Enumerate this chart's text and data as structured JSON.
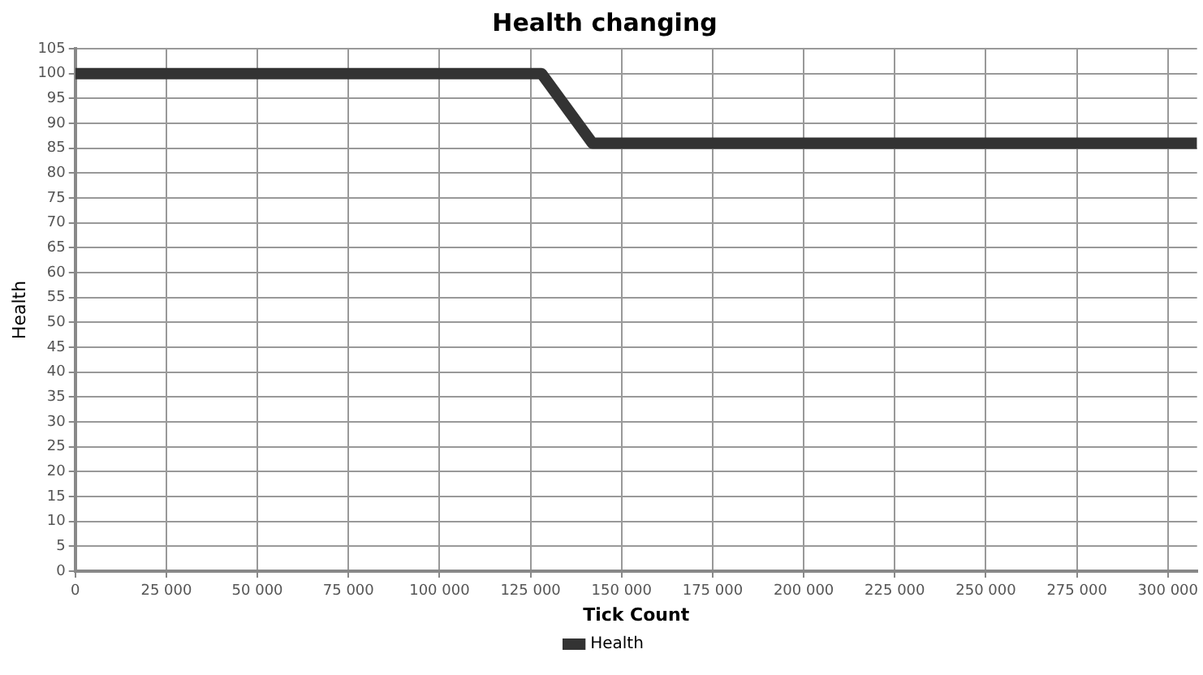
{
  "chart_data": {
    "type": "line",
    "title": "Health changing",
    "xlabel": "Tick Count",
    "ylabel": "Health",
    "series": [
      {
        "name": "Health",
        "color": "#333333",
        "x": [
          0,
          128000,
          142000,
          308000
        ],
        "values": [
          100,
          100,
          86,
          86
        ]
      }
    ],
    "xlim": [
      0,
      308000
    ],
    "xticks": [
      0,
      {
        "value": 25000,
        "label": "25 000"
      },
      {
        "value": 50000,
        "label": "50 000"
      },
      {
        "value": 75000,
        "label": "75 000"
      },
      {
        "value": 100000,
        "label": "100 000"
      },
      {
        "value": 125000,
        "label": "125 000"
      },
      {
        "value": 150000,
        "label": "150 000"
      },
      {
        "value": 175000,
        "label": "175 000"
      },
      {
        "value": 200000,
        "label": "200 000"
      },
      {
        "value": 225000,
        "label": "225 000"
      },
      {
        "value": 250000,
        "label": "250 000"
      },
      {
        "value": 275000,
        "label": "275 000"
      },
      {
        "value": 300000,
        "label": "300 000"
      }
    ],
    "ylim": [
      0,
      105
    ],
    "yticks": [
      0,
      5,
      10,
      15,
      20,
      25,
      30,
      35,
      40,
      45,
      50,
      55,
      60,
      65,
      70,
      75,
      80,
      85,
      90,
      95,
      100,
      105
    ],
    "grid": true,
    "legend": "bottom",
    "marker": "none",
    "line_style": "solid"
  }
}
